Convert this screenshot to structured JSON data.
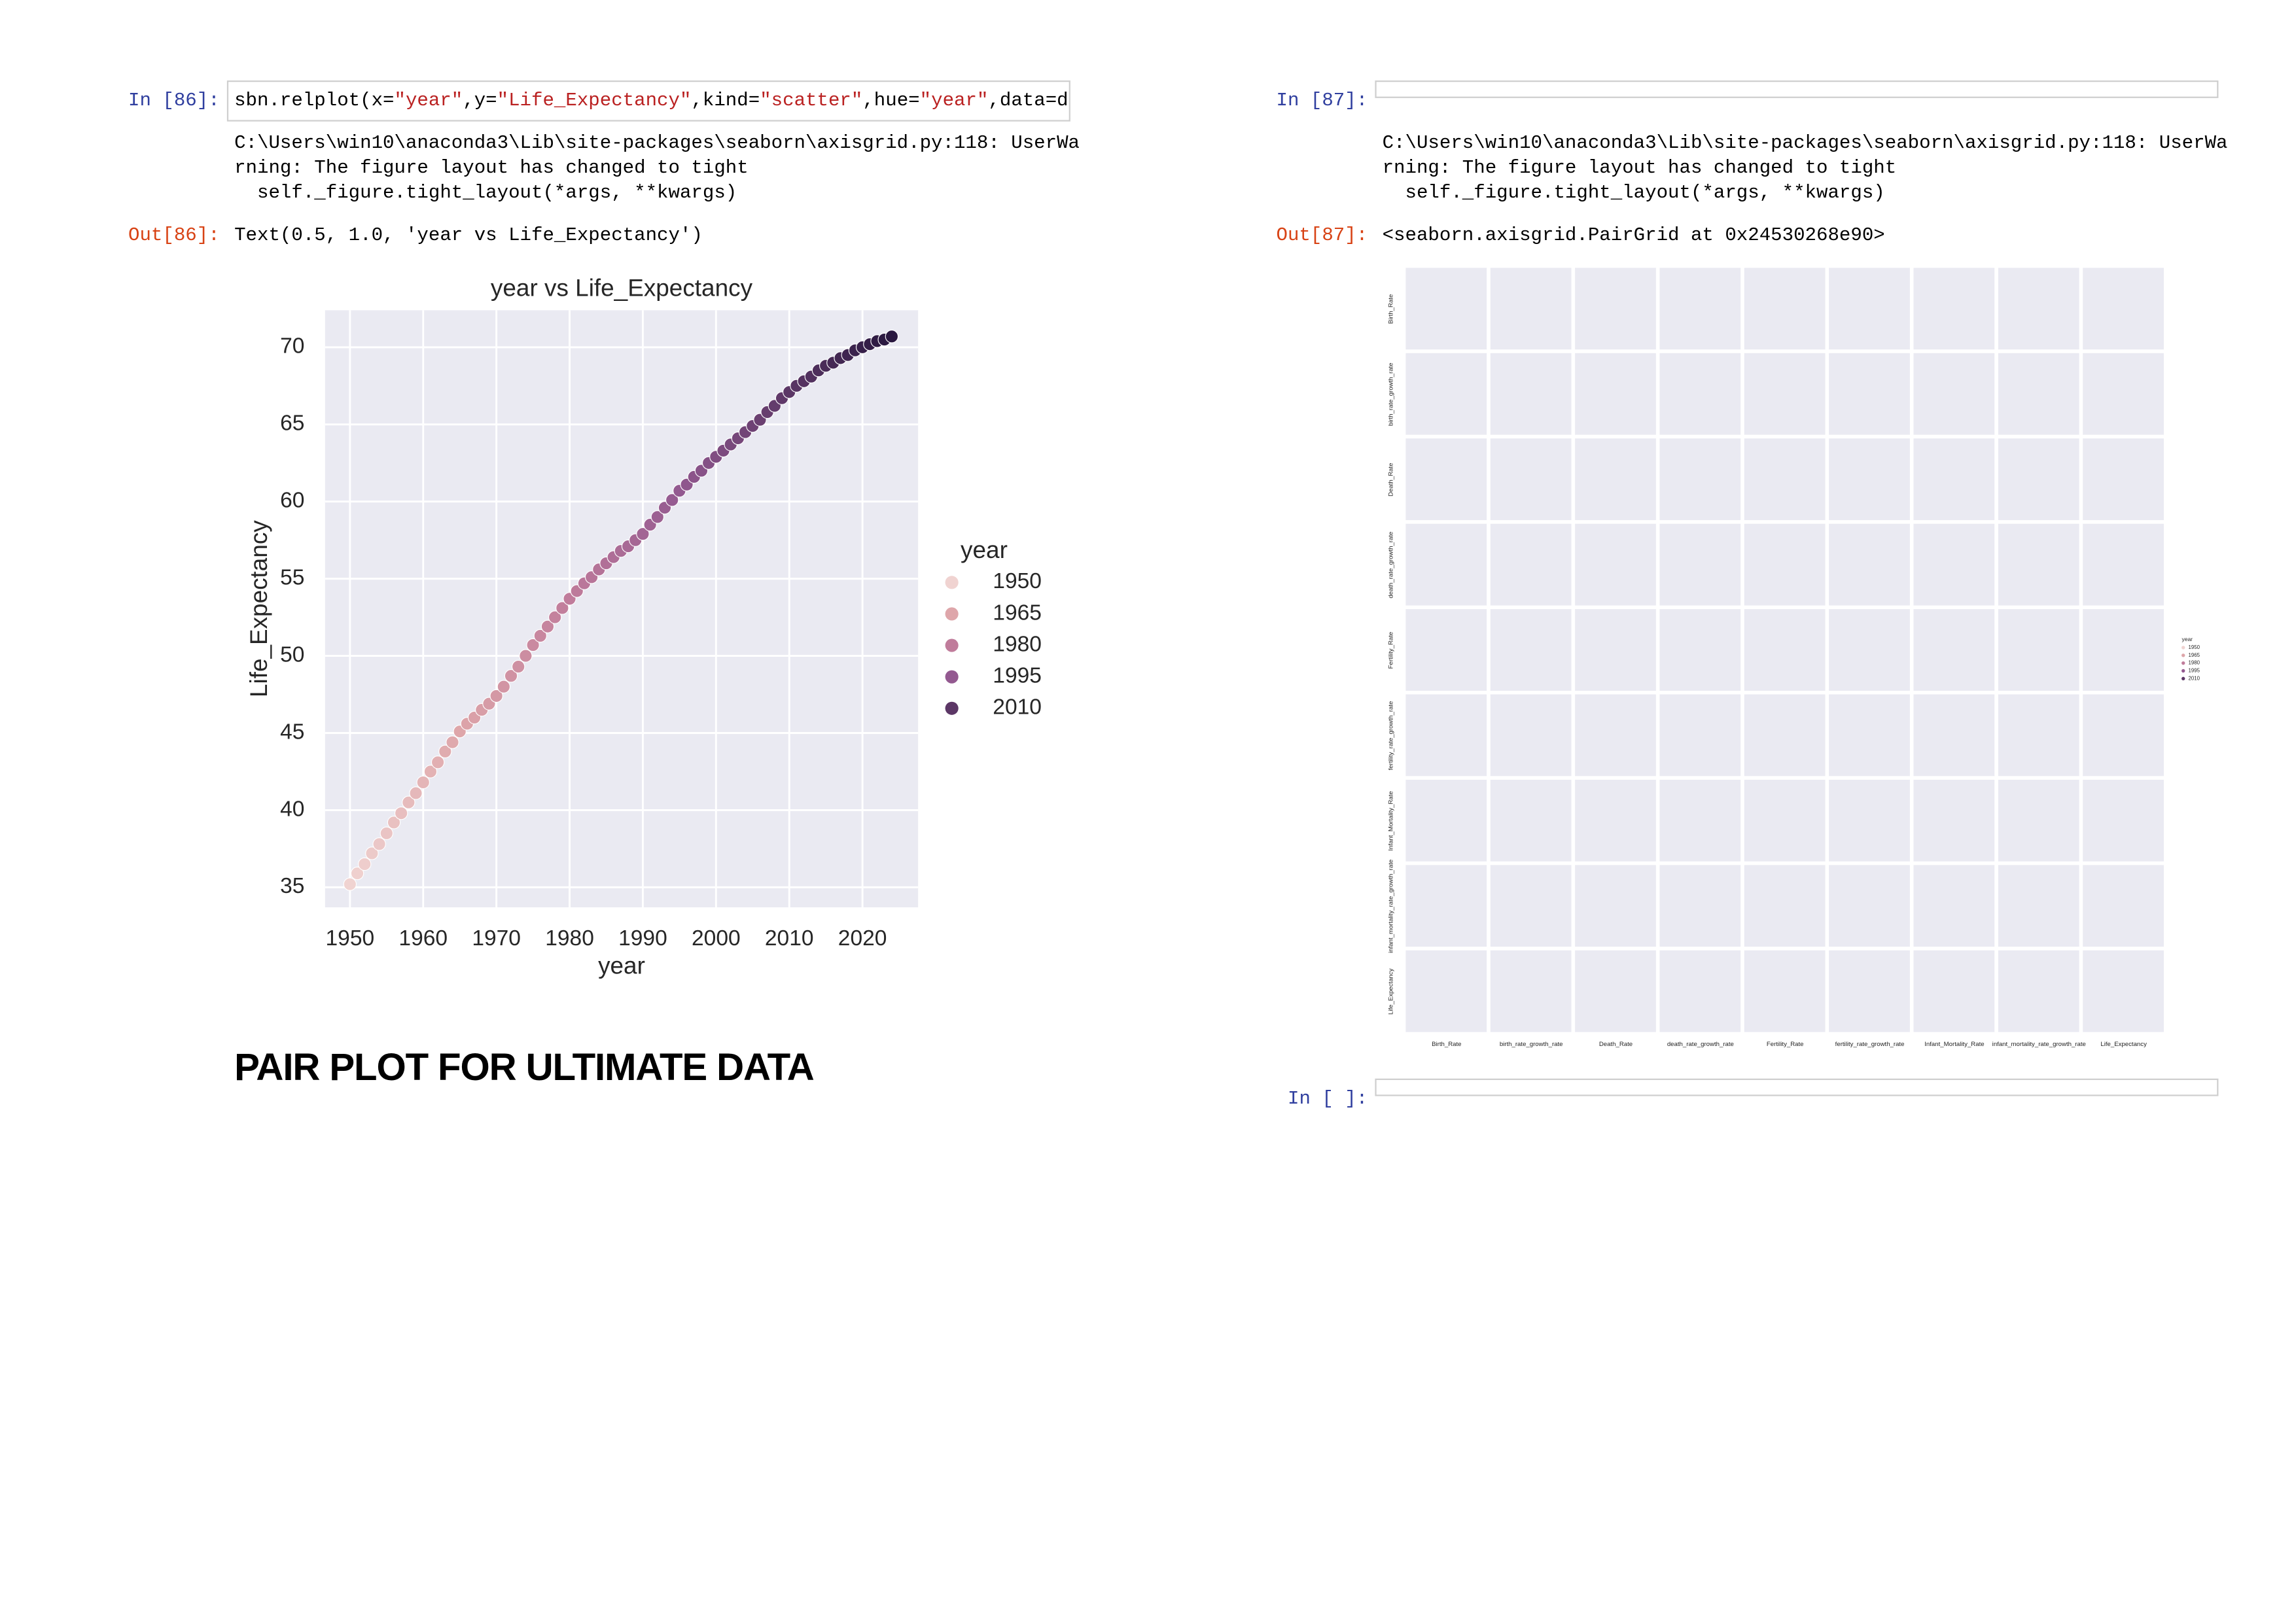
{
  "notebook": {
    "cells": [
      {
        "prompt": "In [86]:",
        "code_tokens": [
          {
            "text": "sbn.relplot(x=",
            "string": false
          },
          {
            "text": "\"year\"",
            "string": true
          },
          {
            "text": ",y=",
            "string": false
          },
          {
            "text": "\"Life_Expectancy\"",
            "string": true
          },
          {
            "text": ",kind=",
            "string": false
          },
          {
            "text": "\"scatter\"",
            "string": true
          },
          {
            "text": ",hue=",
            "string": false
          },
          {
            "text": "\"year\"",
            "string": true
          },
          {
            "text": ",data=dat",
            "string": false
          }
        ],
        "stderr": [
          "C:\\Users\\win10\\anaconda3\\Lib\\site-packages\\seaborn\\axisgrid.py:118: UserWa",
          "rning: The figure layout has changed to tight",
          "  self._figure.tight_layout(*args, **kwargs)"
        ],
        "out_prompt": "Out[86]:",
        "out_text": "Text(0.5, 1.0, 'year vs Life_Expectancy')"
      },
      {
        "prompt": "In [87]:",
        "stderr": [
          "C:\\Users\\win10\\anaconda3\\Lib\\site-packages\\seaborn\\axisgrid.py:118: UserWa",
          "rning: The figure layout has changed to tight",
          "  self._figure.tight_layout(*args, **kwargs)"
        ],
        "out_prompt": "Out[87]:",
        "out_text": "<seaborn.axisgrid.PairGrid at 0x24530268e90>"
      },
      {
        "prompt": "In [ ]:"
      }
    ],
    "markdown_heading": "PAIR PLOT FOR ULTIMATE DATA"
  },
  "chart_data": {
    "type": "scatter",
    "title": "year vs Life_Expectancy",
    "x_label": "year",
    "y_label": "Life_Expectancy",
    "x": [
      1950,
      1951,
      1952,
      1953,
      1954,
      1955,
      1956,
      1957,
      1958,
      1959,
      1960,
      1961,
      1962,
      1963,
      1964,
      1965,
      1966,
      1967,
      1968,
      1969,
      1970,
      1971,
      1972,
      1973,
      1974,
      1975,
      1976,
      1977,
      1978,
      1979,
      1980,
      1981,
      1982,
      1983,
      1984,
      1985,
      1986,
      1987,
      1988,
      1989,
      1990,
      1991,
      1992,
      1993,
      1994,
      1995,
      1996,
      1997,
      1998,
      1999,
      2000,
      2001,
      2002,
      2003,
      2004,
      2005,
      2006,
      2007,
      2008,
      2009,
      2010,
      2011,
      2012,
      2013,
      2014,
      2015,
      2016,
      2017,
      2018,
      2019,
      2020,
      2021,
      2022,
      2023,
      2024
    ],
    "values": [
      35.2,
      35.9,
      36.5,
      37.2,
      37.8,
      38.5,
      39.2,
      39.8,
      40.5,
      41.1,
      41.8,
      42.5,
      43.1,
      43.8,
      44.4,
      45.1,
      45.6,
      46.0,
      46.5,
      46.9,
      47.4,
      48.0,
      48.7,
      49.3,
      50.0,
      50.7,
      51.3,
      51.9,
      52.5,
      53.1,
      53.7,
      54.2,
      54.7,
      55.1,
      55.6,
      56.0,
      56.4,
      56.8,
      57.1,
      57.5,
      57.9,
      58.5,
      59.0,
      59.6,
      60.1,
      60.7,
      61.1,
      61.6,
      62.0,
      62.5,
      62.9,
      63.3,
      63.7,
      64.1,
      64.5,
      64.9,
      65.3,
      65.8,
      66.2,
      66.7,
      67.1,
      67.5,
      67.8,
      68.1,
      68.5,
      68.8,
      69.0,
      69.3,
      69.5,
      69.8,
      70.0,
      70.2,
      70.4,
      70.5,
      70.7
    ],
    "legend": {
      "title": "year",
      "entries": [
        {
          "value": 1950,
          "color": "#f0d3d1"
        },
        {
          "value": 1965,
          "color": "#dea6aa"
        },
        {
          "value": 1980,
          "color": "#c07c9b"
        },
        {
          "value": 1995,
          "color": "#935990"
        },
        {
          "value": 2010,
          "color": "#5c3766"
        }
      ]
    },
    "xlim": [
      1946.6,
      2027.6
    ],
    "ylim": [
      33.7,
      72.4
    ],
    "xticks": [
      1950,
      1960,
      1970,
      1980,
      1990,
      2000,
      2010,
      2020
    ],
    "yticks": [
      35,
      40,
      45,
      50,
      55,
      60,
      65,
      70
    ],
    "grid": true
  },
  "pair_plot": {
    "variables": [
      "Birth_Rate",
      "birth_rate_growth_rate",
      "Death_Rate",
      "death_rate_growth_rate",
      "Fertility_Rate",
      "fertility_rate_growth_rate",
      "Infant_Mortality_Rate",
      "infant_mortality_rate_growth_rate",
      "Life_Expectancy"
    ],
    "legend": {
      "title": "year",
      "entries": [
        {
          "value": 1950,
          "color": "#f0d3d1"
        },
        {
          "value": 1965,
          "color": "#dea6aa"
        },
        {
          "value": 1980,
          "color": "#c07c9b"
        },
        {
          "value": 1995,
          "color": "#935990"
        },
        {
          "value": 2010,
          "color": "#5c3766"
        }
      ]
    }
  }
}
